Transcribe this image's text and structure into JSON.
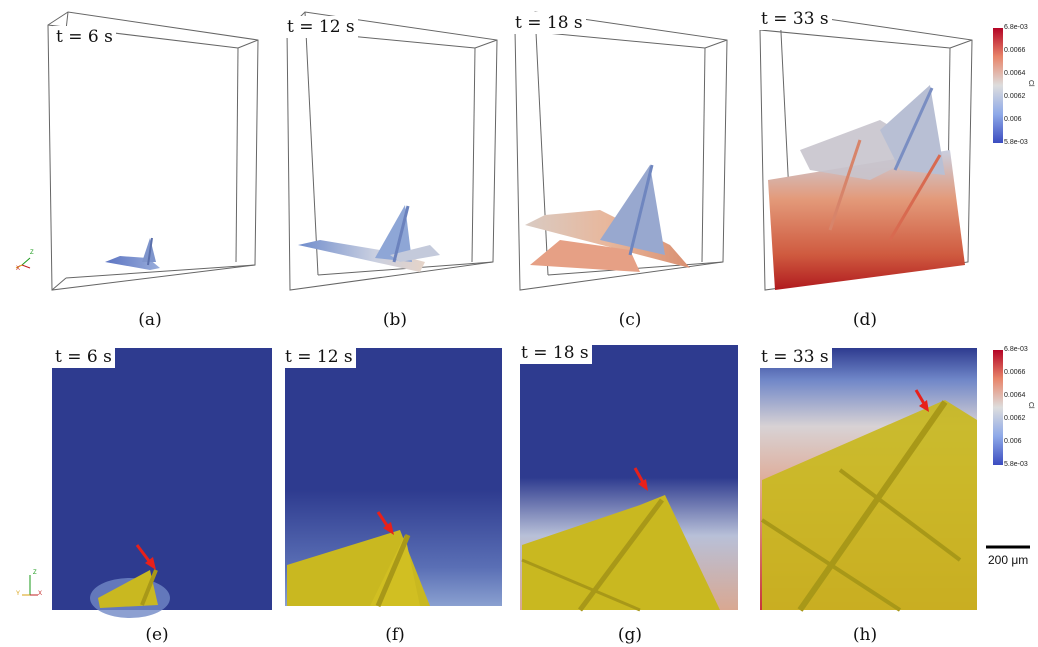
{
  "panels_top": [
    {
      "id": "a",
      "time_label": "t = 6 s",
      "sublabel": "(a)"
    },
    {
      "id": "b",
      "time_label": "t = 12 s",
      "sublabel": "(b)"
    },
    {
      "id": "c",
      "time_label": "t = 18 s",
      "sublabel": "(c)"
    },
    {
      "id": "d",
      "time_label": "t = 33 s",
      "sublabel": "(d)"
    }
  ],
  "panels_bottom": [
    {
      "id": "e",
      "time_label": "t = 6 s",
      "sublabel": "(e)"
    },
    {
      "id": "f",
      "time_label": "t = 12 s",
      "sublabel": "(f)"
    },
    {
      "id": "g",
      "time_label": "t = 18 s",
      "sublabel": "(g)"
    },
    {
      "id": "h",
      "time_label": "t = 33 s",
      "sublabel": "(h)"
    }
  ],
  "colorbar": {
    "title": "Cl",
    "ticks": [
      "6.8e-03",
      "0.0066",
      "0.0064",
      "0.0062",
      "0.006",
      "5.8e-03"
    ],
    "color_high": "#b40426",
    "color_mid": "#dddddd",
    "color_low": "#3b4cc0"
  },
  "scale_bar": {
    "label": "200 μm"
  },
  "axis_triad_top": {
    "z": "Z",
    "x": "X"
  },
  "axis_triad_bottom": {
    "z": "Z",
    "y": "Y",
    "x": "X"
  },
  "colors": {
    "dendrite_2d": "#c9b820",
    "background_2d": "#2e3b8f",
    "arrow": "#e8201a"
  }
}
